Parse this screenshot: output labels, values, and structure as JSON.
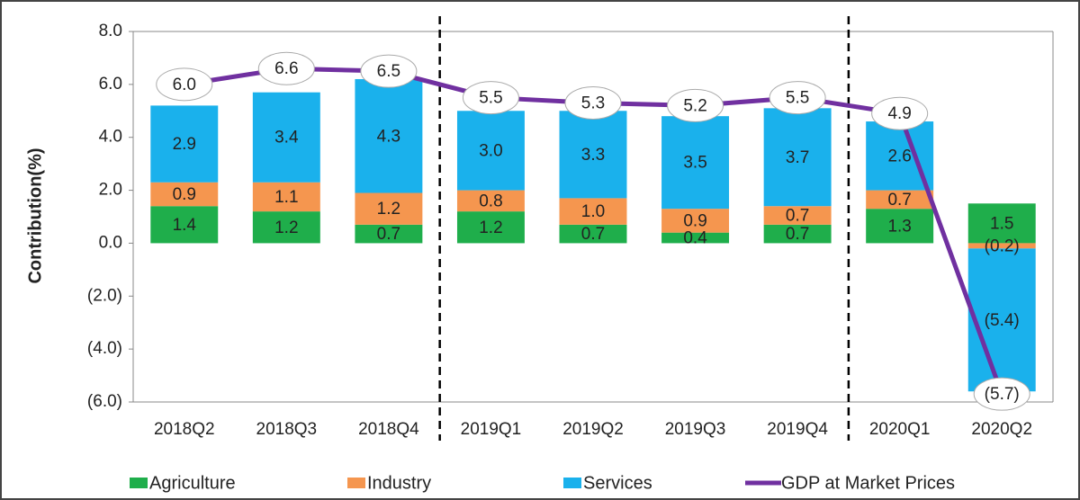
{
  "chart_data": {
    "type": "bar",
    "stacked": true,
    "y_label": "Contribution(%)",
    "categories": [
      "2018Q2",
      "2018Q3",
      "2018Q4",
      "2019Q1",
      "2019Q2",
      "2019Q3",
      "2019Q4",
      "2020Q1",
      "2020Q2"
    ],
    "series": [
      {
        "name": "Agriculture",
        "type": "bar",
        "color": "#1fae4b",
        "values": [
          1.4,
          1.2,
          0.7,
          1.2,
          0.7,
          0.4,
          0.7,
          1.3,
          1.5
        ],
        "value_labels": [
          "1.4",
          "1.2",
          "0.7",
          "1.2",
          "0.7",
          "0.4",
          "0.7",
          "1.3",
          "1.5"
        ]
      },
      {
        "name": "Industry",
        "type": "bar",
        "color": "#f5964f",
        "values": [
          0.9,
          1.1,
          1.2,
          0.8,
          1.0,
          0.9,
          0.7,
          0.7,
          -0.2
        ],
        "value_labels": [
          "0.9",
          "1.1",
          "1.2",
          "0.8",
          "1.0",
          "0.9",
          "0.7",
          "0.7",
          "(0.2)"
        ]
      },
      {
        "name": "Services",
        "type": "bar",
        "color": "#1ab1ec",
        "values": [
          2.9,
          3.4,
          4.3,
          3.0,
          3.3,
          3.5,
          3.7,
          2.6,
          -5.4
        ],
        "value_labels": [
          "2.9",
          "3.4",
          "4.3",
          "3.0",
          "3.3",
          "3.5",
          "3.7",
          "2.6",
          "(5.4)"
        ]
      },
      {
        "name": "GDP at Market Prices",
        "type": "line",
        "color": "#7030a0",
        "values": [
          6.0,
          6.6,
          6.5,
          5.5,
          5.3,
          5.2,
          5.5,
          4.9,
          -5.7
        ],
        "value_labels": [
          "6.0",
          "6.6",
          "6.5",
          "5.5",
          "5.3",
          "5.2",
          "5.5",
          "4.9",
          "(5.7)"
        ]
      }
    ],
    "ylim": [
      -6,
      8
    ],
    "yticks": [
      {
        "value": -6,
        "label": "(6.0)"
      },
      {
        "value": -4,
        "label": "(4.0)"
      },
      {
        "value": -2,
        "label": "(2.0)"
      },
      {
        "value": 0,
        "label": "0.0"
      },
      {
        "value": 2,
        "label": "2.0"
      },
      {
        "value": 4,
        "label": "4.0"
      },
      {
        "value": 6,
        "label": "6.0"
      },
      {
        "value": 8,
        "label": "8.0"
      }
    ],
    "grid": false,
    "legend": "bottom"
  }
}
